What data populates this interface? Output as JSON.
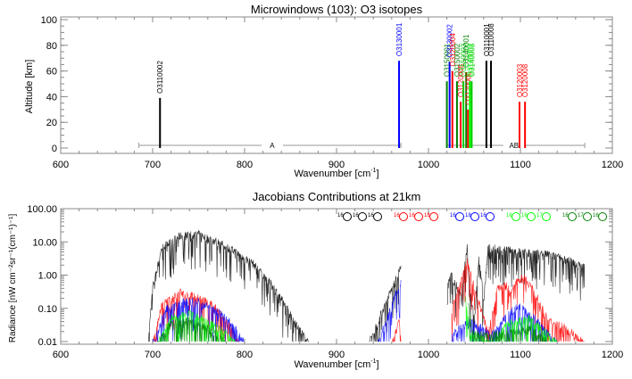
{
  "chart_data": [
    {
      "type": "bar",
      "title": "Microwindows (103): O3 isotopes",
      "xlabel": "Wavenumber [cm",
      "xlabel_sup": "-1",
      "xlabel_end": "]",
      "ylabel": "Altitude [km]",
      "xlim": [
        600,
        1200
      ],
      "ylim": [
        0,
        100
      ],
      "xticks": [
        "600",
        "700",
        "800",
        "900",
        "1000",
        "1100",
        "1200"
      ],
      "yticks": [
        "0",
        "20",
        "40",
        "60",
        "80",
        "100"
      ],
      "bands": [
        {
          "label": "A",
          "x_start": 685,
          "x_end": 970,
          "label_x": 830
        },
        {
          "label": "AB",
          "x_start": 1020,
          "x_end": 1170,
          "label_x": 1093
        }
      ],
      "microwindows": [
        {
          "label": "O3110002",
          "x": 708,
          "top": 39,
          "color": "#000000"
        },
        {
          "label": "O3130001",
          "x": 968,
          "top": 68,
          "color": "#0000ff"
        },
        {
          "label": "O3150001",
          "x": 1020,
          "top": 52,
          "color": "#008000"
        },
        {
          "label": "O3130002",
          "x": 1023,
          "top": 67,
          "color": "#0000ff"
        },
        {
          "label": "O3120004",
          "x": 1026,
          "top": 60,
          "color": "#ff0000"
        },
        {
          "label": "O3150002",
          "x": 1031,
          "top": 52,
          "color": "#008000"
        },
        {
          "label": "O3120005",
          "x": 1035,
          "top": 36,
          "color": "#ff0000"
        },
        {
          "label": "O3150003",
          "x": 1038,
          "top": 52,
          "color": "#00cc00"
        },
        {
          "label": "O3140001",
          "x": 1041,
          "top": 59,
          "color": "#008000"
        },
        {
          "label": "O3120006",
          "x": 1043,
          "top": 30,
          "color": "#ff0000"
        },
        {
          "label": "O3140002",
          "x": 1045,
          "top": 52,
          "color": "#00ff00"
        },
        {
          "label": "O3140003",
          "x": 1047,
          "top": 52,
          "color": "#00cc00"
        },
        {
          "label": "O3110001",
          "x": 1063,
          "top": 68,
          "color": "#000000"
        },
        {
          "label": "O3110008",
          "x": 1068,
          "top": 68,
          "color": "#000000"
        },
        {
          "label": "O3120003",
          "x": 1099,
          "top": 36,
          "color": "#ff0000"
        },
        {
          "label": "O3120008",
          "x": 1105,
          "top": 36,
          "color": "#ff0000"
        }
      ]
    },
    {
      "type": "line",
      "title": "Jacobians Contributions at 21km",
      "xlabel": "Wavenumber [cm",
      "xlabel_sup": "-1",
      "xlabel_end": "]",
      "ylabel": "Radiance [nW cm⁻²sr⁻¹(cm⁻¹)⁻¹]",
      "yscale": "log",
      "xlim": [
        600,
        1200
      ],
      "ylim": [
        0.01,
        100
      ],
      "xticks": [
        "600",
        "700",
        "800",
        "900",
        "1000",
        "1100",
        "1200"
      ],
      "yticks": [
        "0.01",
        "0.10",
        "1.00",
        "10.00",
        "100.00"
      ],
      "legend_position": "top-right",
      "series": [
        {
          "name": "16O16O16O",
          "sups": [
            "16",
            "16",
            "16"
          ],
          "color": "#000000",
          "envelope": [
            [
              695,
              0.01
            ],
            [
              700,
              0.5
            ],
            [
              710,
              8
            ],
            [
              730,
              18
            ],
            [
              750,
              20
            ],
            [
              770,
              12
            ],
            [
              790,
              6
            ],
            [
              810,
              2.5
            ],
            [
              830,
              0.6
            ],
            [
              850,
              0.08
            ],
            [
              870,
              0.01
            ],
            [
              935,
              0.01
            ],
            [
              950,
              0.1
            ],
            [
              970,
              2
            ],
            [
              1020,
              0.5
            ],
            [
              1025,
              1.2
            ],
            [
              1035,
              0.3
            ],
            [
              1042,
              8
            ],
            [
              1045,
              0.4
            ],
            [
              1050,
              0.05
            ],
            [
              1055,
              5
            ],
            [
              1060,
              0.2
            ],
            [
              1065,
              8
            ],
            [
              1080,
              7
            ],
            [
              1100,
              6
            ],
            [
              1130,
              5
            ],
            [
              1150,
              3.5
            ],
            [
              1170,
              2
            ]
          ]
        },
        {
          "name": "16O16O18O",
          "sups": [
            "16",
            "16",
            "18"
          ],
          "color": "#ff0000",
          "envelope": [
            [
              700,
              0.01
            ],
            [
              710,
              0.15
            ],
            [
              730,
              0.35
            ],
            [
              750,
              0.25
            ],
            [
              770,
              0.12
            ],
            [
              790,
              0.02
            ],
            [
              795,
              0.01
            ],
            [
              960,
              0.01
            ],
            [
              968,
              0.05
            ],
            [
              970,
              0.01
            ],
            [
              1025,
              0.1
            ],
            [
              1042,
              3
            ],
            [
              1065,
              0.02
            ],
            [
              1075,
              0.5
            ],
            [
              1085,
              0.6
            ],
            [
              1090,
              0.3
            ],
            [
              1095,
              0.8
            ],
            [
              1105,
              1
            ],
            [
              1115,
              0.4
            ],
            [
              1130,
              0.05
            ],
            [
              1150,
              0.03
            ],
            [
              1170,
              0.01
            ]
          ]
        },
        {
          "name": "16O18O16O",
          "sups": [
            "16",
            "18",
            "16"
          ],
          "color": "#0000ff",
          "envelope": [
            [
              700,
              0.01
            ],
            [
              715,
              0.12
            ],
            [
              735,
              0.2
            ],
            [
              750,
              0.18
            ],
            [
              770,
              0.1
            ],
            [
              790,
              0.03
            ],
            [
              800,
              0.01
            ],
            [
              945,
              0.01
            ],
            [
              970,
              0.8
            ],
            [
              1025,
              0.02
            ],
            [
              1045,
              0.05
            ],
            [
              1070,
              0.02
            ],
            [
              1090,
              0.1
            ],
            [
              1100,
              0.15
            ],
            [
              1115,
              0.06
            ],
            [
              1140,
              0.01
            ]
          ]
        },
        {
          "name": "16O16O17O",
          "sups": [
            "16",
            "16",
            "17"
          ],
          "color": "#00ff00",
          "envelope": [
            [
              705,
              0.01
            ],
            [
              720,
              0.06
            ],
            [
              740,
              0.08
            ],
            [
              760,
              0.05
            ],
            [
              780,
              0.02
            ],
            [
              790,
              0.01
            ],
            [
              1040,
              0.3
            ],
            [
              1045,
              0.02
            ],
            [
              1070,
              0.01
            ],
            [
              1085,
              0.04
            ],
            [
              1110,
              0.06
            ],
            [
              1130,
              0.02
            ],
            [
              1140,
              0.01
            ]
          ]
        },
        {
          "name": "16O17O16O",
          "sups": [
            "16",
            "17",
            "16"
          ],
          "color": "#008000",
          "envelope": [
            [
              705,
              0.01
            ],
            [
              720,
              0.04
            ],
            [
              740,
              0.05
            ],
            [
              760,
              0.03
            ],
            [
              780,
              0.01
            ],
            [
              1043,
              0.2
            ],
            [
              1048,
              0.02
            ],
            [
              1080,
              0.02
            ],
            [
              1110,
              0.03
            ],
            [
              1130,
              0.01
            ]
          ]
        }
      ]
    }
  ]
}
